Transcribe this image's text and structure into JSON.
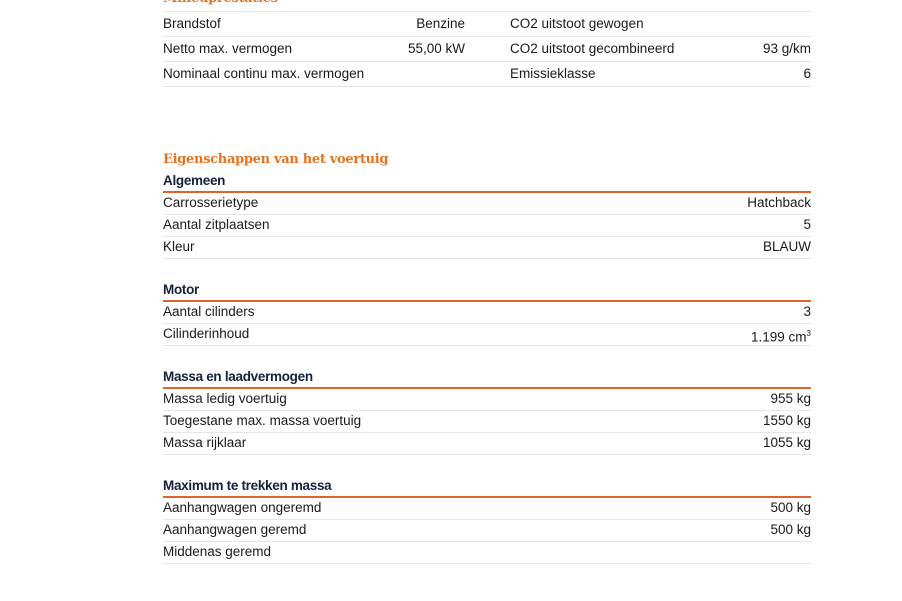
{
  "milieu": {
    "title": "Milieuprestaties",
    "rows": [
      {
        "label1": "Brandstof",
        "value1": "Benzine",
        "label2": "CO2 uitstoot gewogen",
        "value2": ""
      },
      {
        "label1": "Netto max. vermogen",
        "value1": "55,00 kW",
        "label2": "CO2 uitstoot gecombineerd",
        "value2": "93 g/km"
      },
      {
        "label1": "Nominaal continu max. vermogen",
        "value1": "",
        "label2": "Emissieklasse",
        "value2": "6"
      }
    ]
  },
  "eigenschappen": {
    "title": "Eigenschappen van het voertuig",
    "groups": [
      {
        "heading": "Algemeen",
        "rows": [
          {
            "label": "Carrosserietype",
            "value": "Hatchback"
          },
          {
            "label": "Aantal zitplaatsen",
            "value": "5"
          },
          {
            "label": "Kleur",
            "value": "BLAUW"
          }
        ]
      },
      {
        "heading": "Motor",
        "rows": [
          {
            "label": "Aantal cilinders",
            "value": "3"
          },
          {
            "label": "Cilinderinhoud",
            "value": "1.199 cm",
            "sup": "3"
          }
        ]
      },
      {
        "heading": "Massa en laadvermogen",
        "rows": [
          {
            "label": "Massa ledig voertuig",
            "value": "955 kg"
          },
          {
            "label": "Toegestane max. massa voertuig",
            "value": "1550 kg"
          },
          {
            "label": "Massa rijklaar",
            "value": "1055 kg"
          }
        ]
      },
      {
        "heading": "Maximum te trekken massa",
        "rows": [
          {
            "label": "Aanhangwagen ongeremd",
            "value": "500 kg"
          },
          {
            "label": "Aanhangwagen geremd",
            "value": "500 kg"
          },
          {
            "label": "Middenas geremd",
            "value": ""
          }
        ]
      }
    ]
  }
}
